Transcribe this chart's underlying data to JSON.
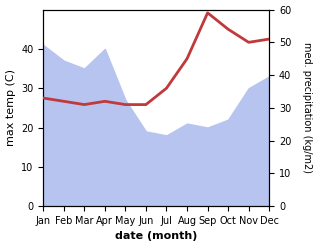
{
  "months": [
    "Jan",
    "Feb",
    "Mar",
    "Apr",
    "May",
    "Jun",
    "Jul",
    "Aug",
    "Sep",
    "Oct",
    "Nov",
    "Dec"
  ],
  "x": [
    0,
    1,
    2,
    3,
    4,
    5,
    6,
    7,
    8,
    9,
    10,
    11
  ],
  "max_temp": [
    41,
    37,
    35,
    40,
    27,
    19,
    18,
    21,
    20,
    22,
    30,
    33
  ],
  "precipitation": [
    33,
    32,
    31,
    32,
    31,
    31,
    36,
    45,
    59,
    54,
    50,
    51
  ],
  "temp_fill_color": "#b8c4f0",
  "precip_line_color": "#c0393b",
  "xlabel": "date (month)",
  "ylabel_left": "max temp (C)",
  "ylabel_right": "med. precipitation (kg/m2)",
  "ylim_left": [
    0,
    50
  ],
  "ylim_right": [
    0,
    60
  ],
  "yticks_left": [
    0,
    10,
    20,
    30,
    40
  ],
  "yticks_right": [
    0,
    10,
    20,
    30,
    40,
    50,
    60
  ]
}
